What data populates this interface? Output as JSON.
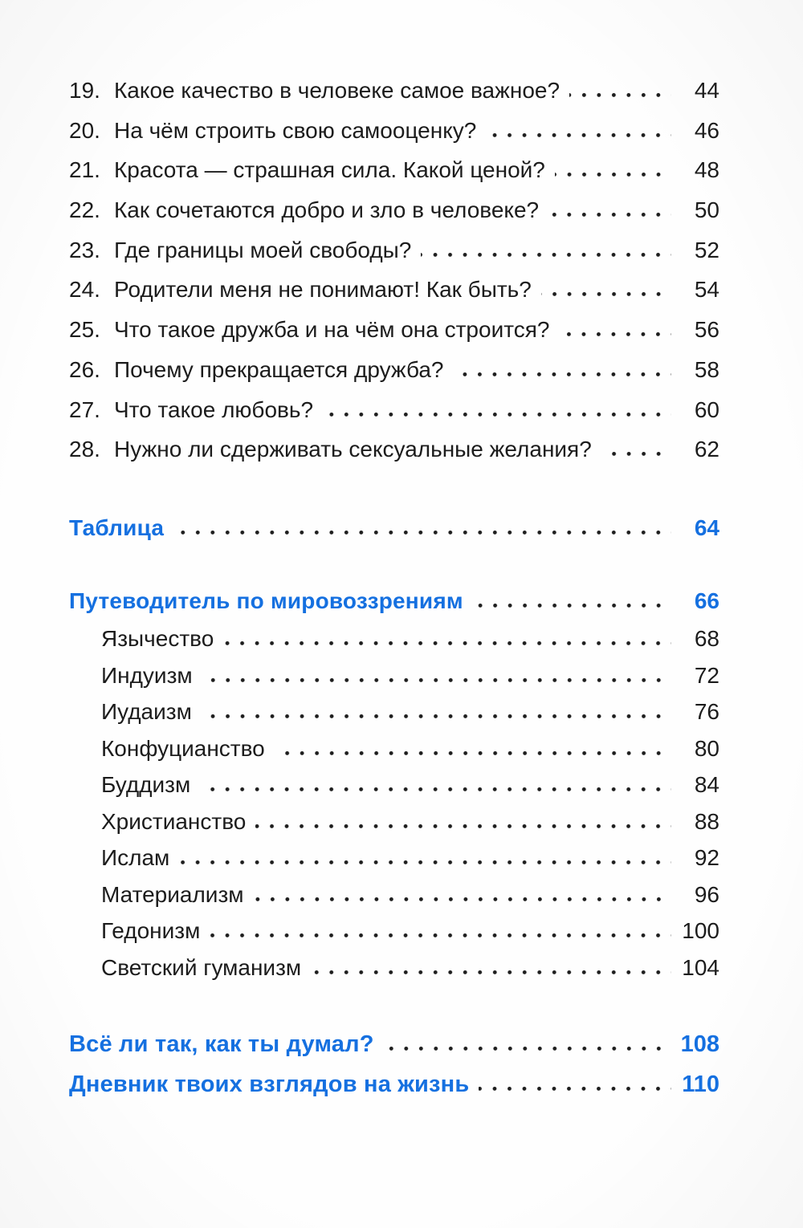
{
  "page": {
    "background": "#fefefe",
    "accent_blue": "#1570e0",
    "text_color": "#1c1c1c"
  },
  "toc": {
    "numbered_items": [
      {
        "num": "19.",
        "title": "Какое качество в человеке самое важное?",
        "page": "44"
      },
      {
        "num": "20.",
        "title": "На чём строить свою самооценку?",
        "page": "46"
      },
      {
        "num": "21.",
        "title": "Красота — страшная сила. Какой ценой?",
        "page": "48"
      },
      {
        "num": "22.",
        "title": "Как сочетаются добро и зло в человеке?",
        "page": "50"
      },
      {
        "num": "23.",
        "title": "Где границы моей свободы?",
        "page": "52"
      },
      {
        "num": "24.",
        "title": "Родители меня не понимают! Как быть?",
        "page": "54"
      },
      {
        "num": "25.",
        "title": "Что такое дружба и на чём она строится?",
        "page": "56"
      },
      {
        "num": "26.",
        "title": "Почему прекращается дружба?",
        "page": "58"
      },
      {
        "num": "27.",
        "title": "Что такое любовь?",
        "page": "60"
      },
      {
        "num": "28.",
        "title": "Нужно ли сдерживать сексуальные желания?",
        "page": "62"
      }
    ],
    "tablica": {
      "title": "Таблица",
      "page": "64"
    },
    "guide": {
      "title": "Путеводитель по мировоззрениям",
      "page": "66",
      "subitems": [
        {
          "title": "Язычество",
          "page": "68"
        },
        {
          "title": "Индуизм",
          "page": "72"
        },
        {
          "title": "Иудаизм",
          "page": "76"
        },
        {
          "title": "Конфуцианство",
          "page": "80"
        },
        {
          "title": "Буддизм",
          "page": "84"
        },
        {
          "title": "Христианство",
          "page": "88"
        },
        {
          "title": "Ислам",
          "page": "92"
        },
        {
          "title": "Материализм",
          "page": "96"
        },
        {
          "title": "Гедонизм",
          "page": "100"
        },
        {
          "title": "Светский гуманизм",
          "page": "104"
        }
      ]
    },
    "footer_items": [
      {
        "title": "Всё ли так, как ты думал?",
        "page": "108"
      },
      {
        "title": "Дневник твоих взглядов на жизнь",
        "page": "110"
      }
    ]
  }
}
